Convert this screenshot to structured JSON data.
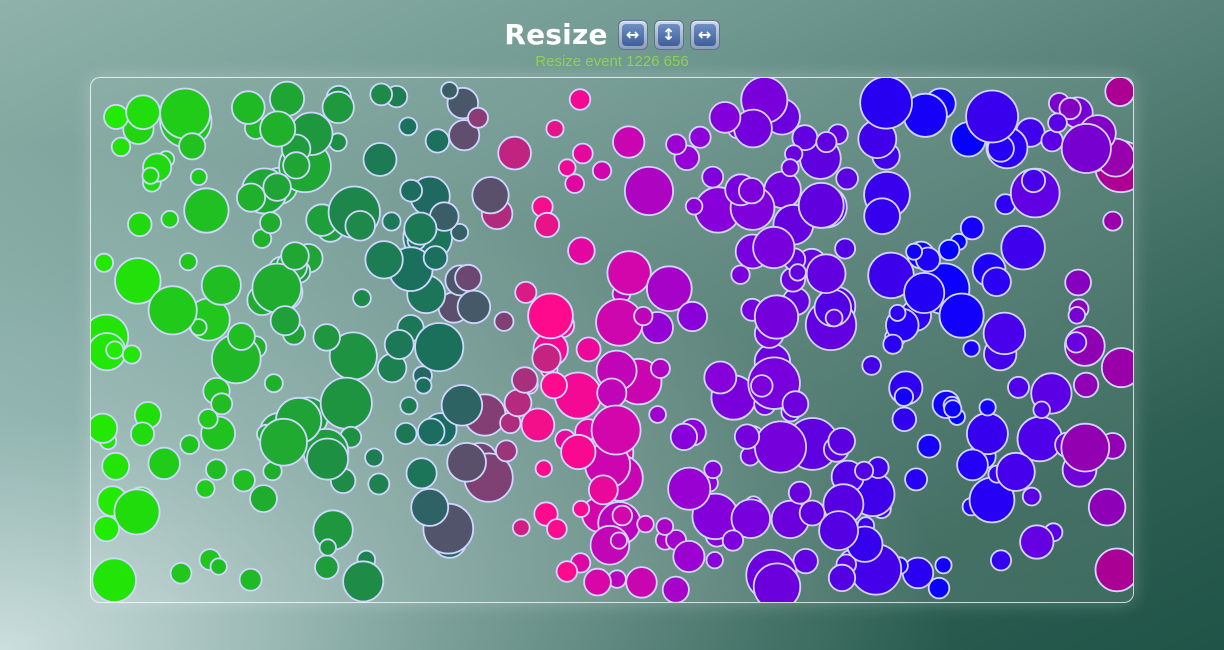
{
  "header": {
    "title": "Resize",
    "icons": [
      {
        "name": "left-right-arrow-icon",
        "glyph": "↔"
      },
      {
        "name": "up-down-arrow-icon",
        "glyph": "↕"
      },
      {
        "name": "left-right-arrow-icon",
        "glyph": "↔"
      }
    ],
    "status": "Resize event 1226 656"
  },
  "colors": {
    "status_text": "#8fd14f",
    "bubble_stroke": "#cfd6ff",
    "green": "#22ee00",
    "teal": "#1b6b60",
    "pink": "#ff0a8c",
    "purple": "#8f00d8",
    "blue": "#0000ff"
  }
}
